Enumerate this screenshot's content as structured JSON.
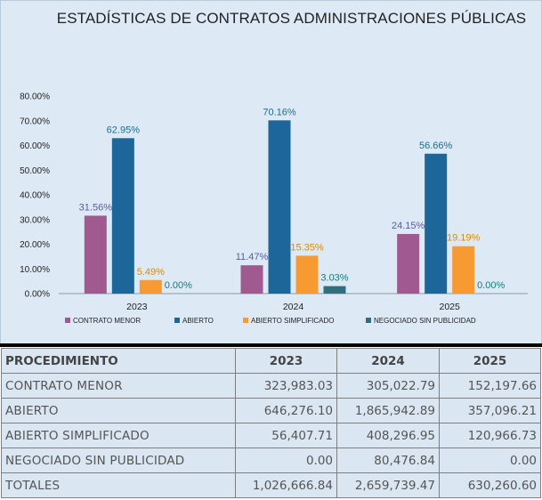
{
  "chart_data": {
    "type": "bar",
    "title": "ESTADÍSTICAS DE CONTRATOS ADMINISTRACIONES PÚBLICAS",
    "categories": [
      "2023",
      "2024",
      "2025"
    ],
    "ylim": [
      0,
      80
    ],
    "yticks": [
      "0.00%",
      "10.00%",
      "20.00%",
      "30.00%",
      "40.00%",
      "50.00%",
      "60.00%",
      "70.00%",
      "80.00%"
    ],
    "grid": false,
    "legend_position": "bottom",
    "series": [
      {
        "name": "CONTRATO MENOR",
        "color": "#a05a90",
        "label_color": "#5b5ba0",
        "values": [
          31.56,
          11.47,
          24.15
        ],
        "labels": [
          "31.56%",
          "11.47%",
          "24.15%"
        ]
      },
      {
        "name": "ABIERTO",
        "color": "#1c6699",
        "label_color": "#1a6e8a",
        "values": [
          62.95,
          70.16,
          56.66
        ],
        "labels": [
          "62.95%",
          "70.16%",
          "56.66%"
        ]
      },
      {
        "name": "ABIERTO SIMPLIFICADO",
        "color": "#f79a32",
        "label_color": "#e08a00",
        "values": [
          5.49,
          15.35,
          19.19
        ],
        "labels": [
          "5.49%",
          "15.35%",
          "19.19%"
        ]
      },
      {
        "name": "NEGOCIADO SIN PUBLICIDAD",
        "color": "#2f6f7e",
        "label_color": "#1a7a7a",
        "values": [
          0.0,
          3.03,
          0.0
        ],
        "labels": [
          "0.00%",
          "3.03%",
          "0.00%"
        ]
      }
    ]
  },
  "table": {
    "headers": [
      "PROCEDIMIENTO",
      "2023",
      "2024",
      "2025"
    ],
    "rows": [
      [
        "CONTRATO MENOR",
        "323,983.03",
        "305,022.79",
        "152,197.66"
      ],
      [
        "ABIERTO",
        "646,276.10",
        "1,865,942.89",
        "357,096.21"
      ],
      [
        "ABIERTO SIMPLIFICADO",
        "56,407.71",
        "408,296.95",
        "120,966.73"
      ],
      [
        "NEGOCIADO SIN PUBLICIDAD",
        "0.00",
        "80,476.84",
        "0.00"
      ],
      [
        "TOTALES",
        "1,026,666.84",
        "2,659,739.47",
        "630,260.60"
      ]
    ]
  }
}
